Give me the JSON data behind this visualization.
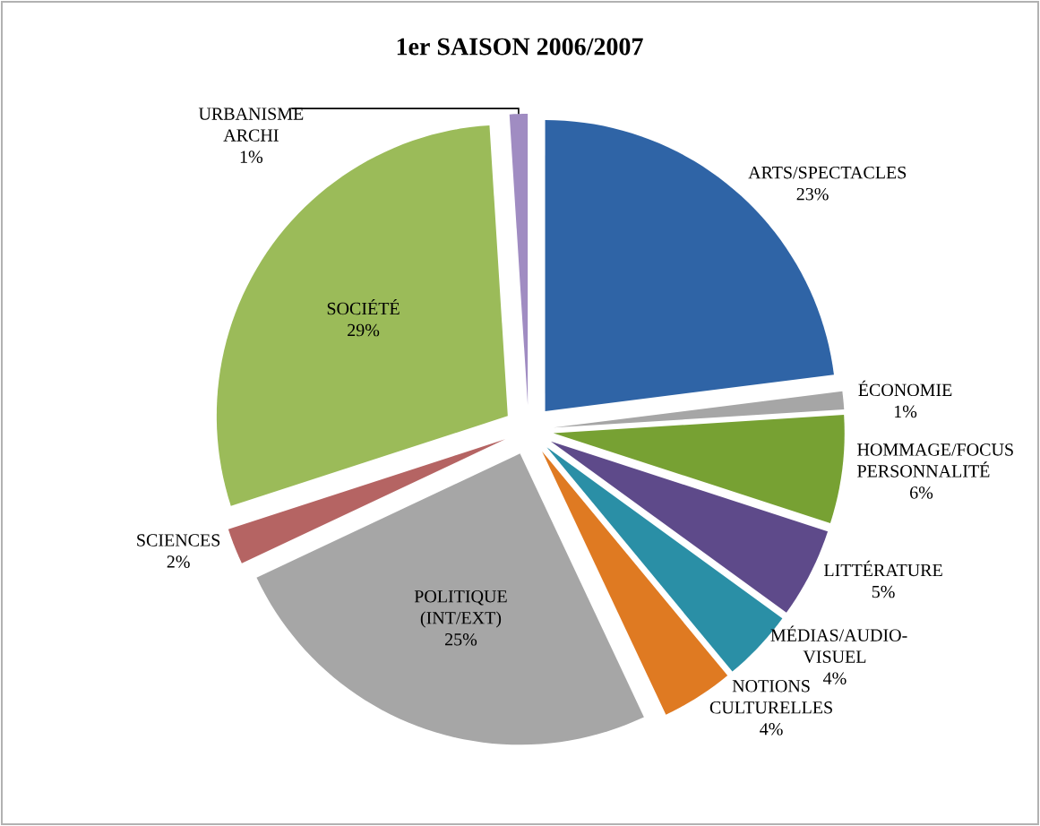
{
  "chart_data": {
    "type": "pie",
    "title": "1er SAISON 2006/2007",
    "categories": [
      "ARTS/SPECTACLES",
      "ÉCONOMIE",
      "HOMMAGE/FOCUS PERSONNALITÉ",
      "LITTÉRATURE",
      "MÉDIAS/AUDIO-VISUEL",
      "NOTIONS CULTURELLES",
      "POLITIQUE (INT/EXT)",
      "SCIENCES",
      "SOCIÉTÉ",
      "URBANISME ARCHI"
    ],
    "values": [
      23,
      1,
      6,
      5,
      4,
      4,
      25,
      2,
      29,
      1
    ],
    "value_labels": [
      "23%",
      "1%",
      "6%",
      "5%",
      "4%",
      "4%",
      "25%",
      "2%",
      "29%",
      "1%"
    ],
    "colors": [
      "#2f64a6",
      "#a6a6a6",
      "#77a133",
      "#5e4a8a",
      "#2a8fa6",
      "#df7a22",
      "#a6a6a6",
      "#b56463",
      "#9bbb59",
      "#a08cc2"
    ]
  }
}
